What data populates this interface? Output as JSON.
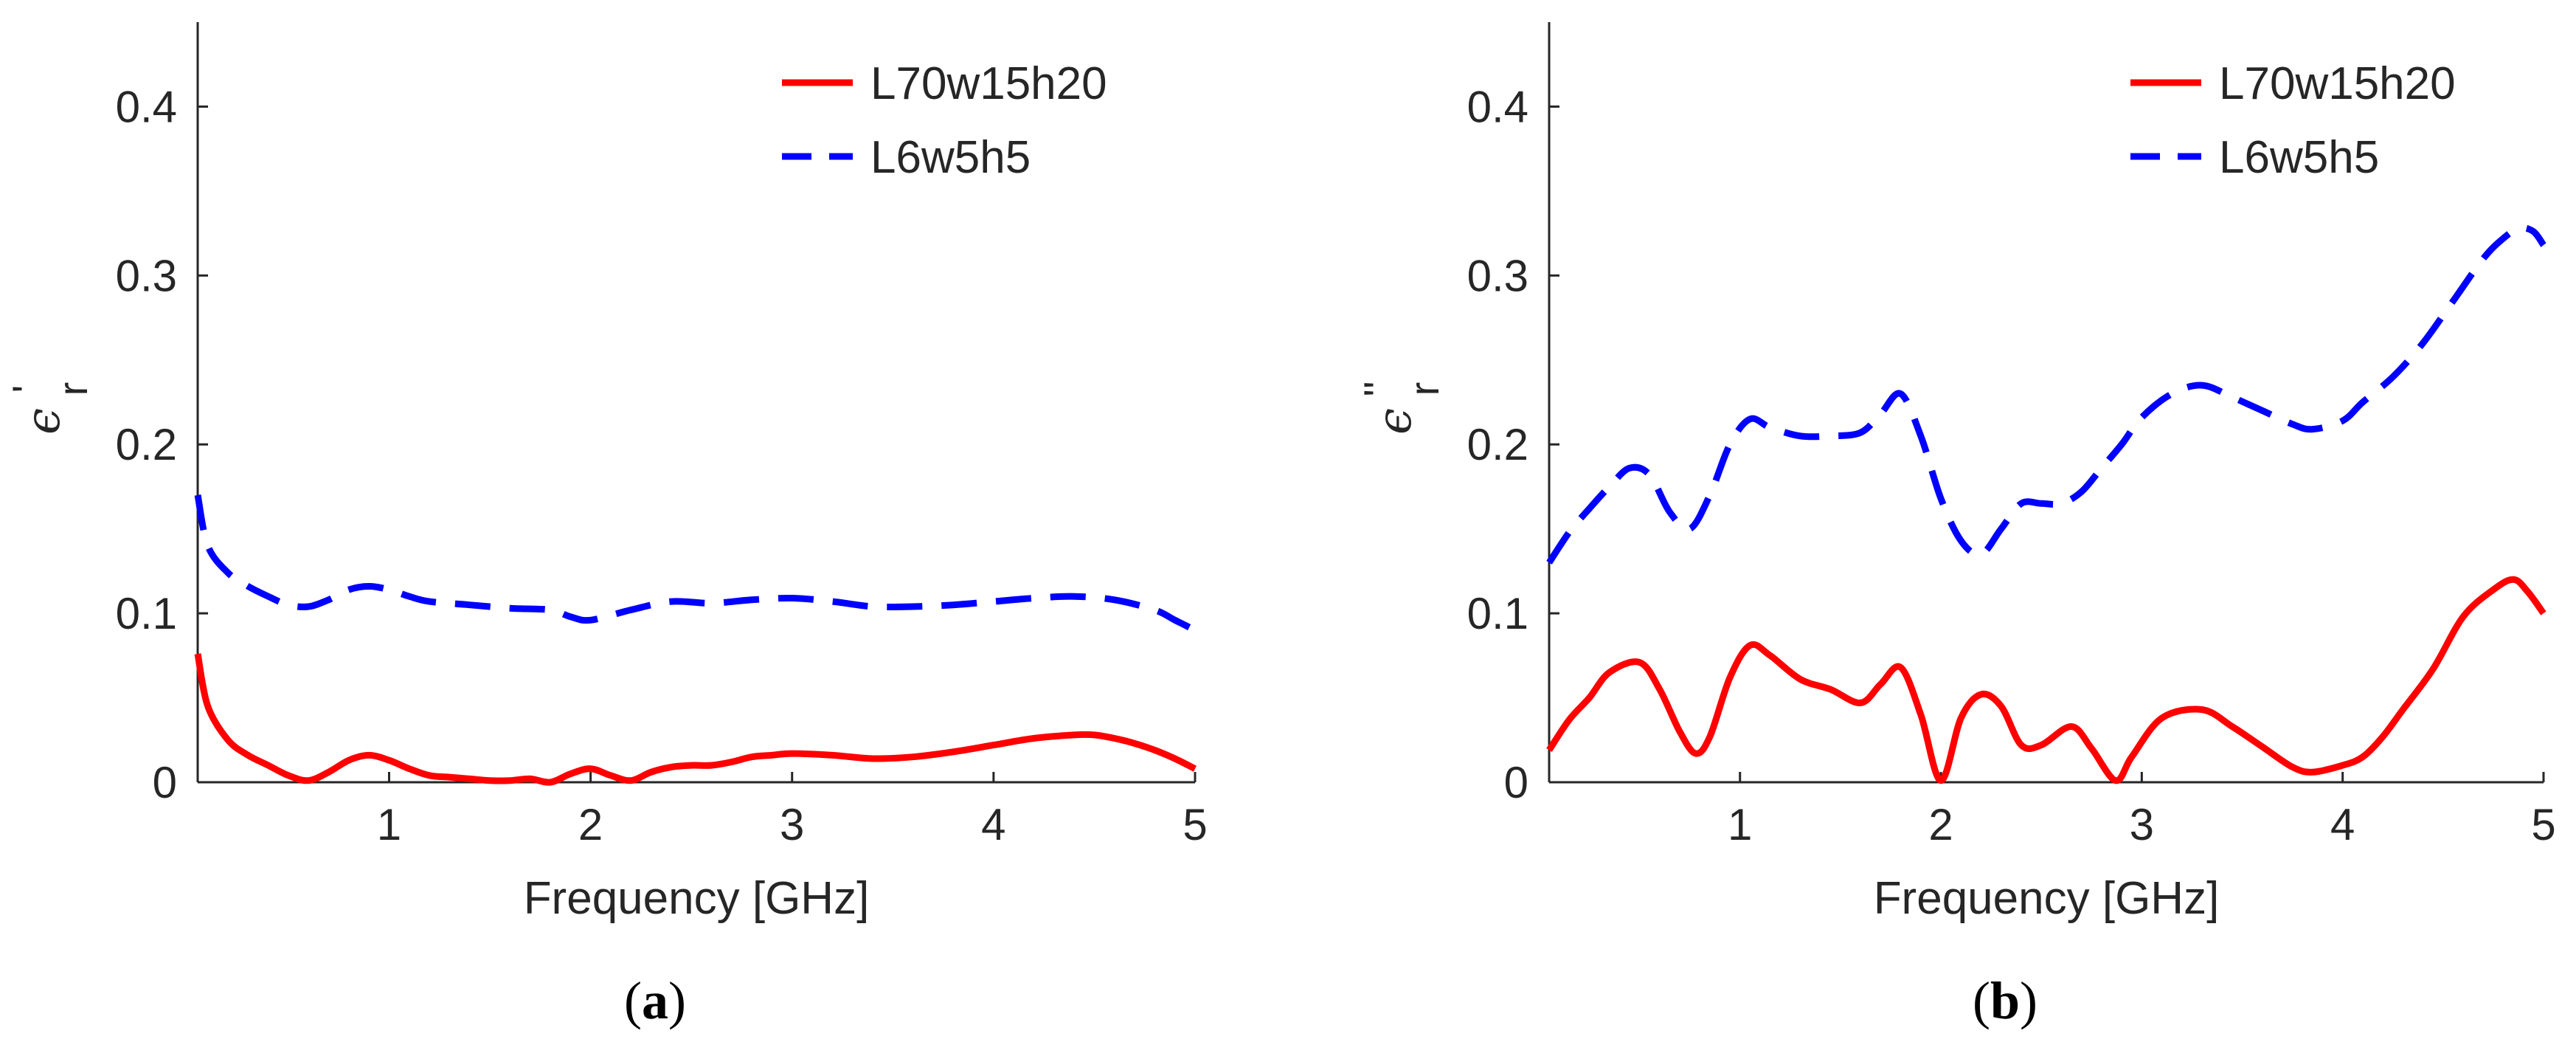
{
  "chart_data": [
    {
      "type": "line",
      "panel_id": "a",
      "caption_label": "a",
      "caption_open": "(",
      "caption_close": ")",
      "xlabel": "Frequency [GHz]",
      "ylabel_symbol": "ϵ",
      "ylabel_subscript": "r",
      "ylabel_prime": "'",
      "xlim": [
        0.05,
        5
      ],
      "ylim": [
        0,
        0.45
      ],
      "xticks": [
        1,
        2,
        3,
        4,
        5
      ],
      "yticks": [
        0,
        0.1,
        0.2,
        0.3,
        0.4
      ],
      "xtick_labels": [
        "1",
        "2",
        "3",
        "4",
        "5"
      ],
      "ytick_labels": [
        "0",
        "0.1",
        "0.2",
        "0.3",
        "0.4"
      ],
      "legend_position": "top-right",
      "series": [
        {
          "name": "L70w15h20",
          "color": "#ff0000",
          "style": "solid",
          "x": [
            0.05,
            0.1,
            0.2,
            0.3,
            0.4,
            0.5,
            0.6,
            0.7,
            0.8,
            0.9,
            1.0,
            1.1,
            1.2,
            1.3,
            1.4,
            1.5,
            1.6,
            1.7,
            1.8,
            1.9,
            2.0,
            2.1,
            2.2,
            2.3,
            2.4,
            2.5,
            2.6,
            2.7,
            2.8,
            2.9,
            3.0,
            3.2,
            3.4,
            3.6,
            3.8,
            4.0,
            4.2,
            4.4,
            4.5,
            4.6,
            4.7,
            4.8,
            4.9,
            5.0
          ],
          "y": [
            0.076,
            0.045,
            0.025,
            0.016,
            0.01,
            0.004,
            0.001,
            0.006,
            0.013,
            0.016,
            0.013,
            0.008,
            0.004,
            0.003,
            0.002,
            0.001,
            0.001,
            0.002,
            0.0,
            0.005,
            0.008,
            0.004,
            0.001,
            0.006,
            0.009,
            0.01,
            0.01,
            0.012,
            0.015,
            0.016,
            0.017,
            0.016,
            0.014,
            0.015,
            0.018,
            0.022,
            0.026,
            0.028,
            0.028,
            0.026,
            0.023,
            0.019,
            0.014,
            0.008
          ]
        },
        {
          "name": "L6w5h5",
          "color": "#0000ff",
          "style": "dashed",
          "x": [
            0.05,
            0.1,
            0.2,
            0.3,
            0.4,
            0.5,
            0.6,
            0.7,
            0.8,
            0.9,
            1.0,
            1.1,
            1.2,
            1.4,
            1.6,
            1.8,
            1.9,
            2.0,
            2.2,
            2.4,
            2.6,
            2.8,
            3.0,
            3.2,
            3.4,
            3.6,
            3.8,
            4.0,
            4.2,
            4.4,
            4.6,
            4.8,
            4.9,
            5.0
          ],
          "y": [
            0.17,
            0.14,
            0.124,
            0.116,
            0.11,
            0.105,
            0.104,
            0.108,
            0.114,
            0.116,
            0.114,
            0.11,
            0.107,
            0.105,
            0.103,
            0.102,
            0.098,
            0.096,
            0.102,
            0.107,
            0.106,
            0.108,
            0.109,
            0.107,
            0.104,
            0.104,
            0.105,
            0.107,
            0.109,
            0.11,
            0.108,
            0.102,
            0.096,
            0.09
          ]
        }
      ]
    },
    {
      "type": "line",
      "panel_id": "b",
      "caption_label": "b",
      "caption_open": "(",
      "caption_close": ")",
      "xlabel": "Frequency [GHz]",
      "ylabel_symbol": "ϵ",
      "ylabel_subscript": "r",
      "ylabel_prime": "''",
      "xlim": [
        0.05,
        5
      ],
      "ylim": [
        0,
        0.45
      ],
      "xticks": [
        1,
        2,
        3,
        4,
        5
      ],
      "yticks": [
        0,
        0.1,
        0.2,
        0.3,
        0.4
      ],
      "xtick_labels": [
        "1",
        "2",
        "3",
        "4",
        "5"
      ],
      "ytick_labels": [
        "0",
        "0.1",
        "0.2",
        "0.3",
        "0.4"
      ],
      "legend_position": "top-right",
      "series": [
        {
          "name": "L70w15h20",
          "color": "#ff0000",
          "style": "solid",
          "x": [
            0.05,
            0.15,
            0.25,
            0.35,
            0.5,
            0.6,
            0.7,
            0.78,
            0.85,
            0.95,
            1.05,
            1.15,
            1.3,
            1.45,
            1.6,
            1.7,
            1.8,
            1.9,
            2.0,
            2.1,
            2.2,
            2.3,
            2.4,
            2.5,
            2.65,
            2.75,
            2.87,
            2.95,
            3.1,
            3.3,
            3.45,
            3.6,
            3.75,
            3.85,
            4.0,
            4.1,
            4.2,
            4.3,
            4.45,
            4.6,
            4.75,
            4.85,
            4.92,
            5.0
          ],
          "y": [
            0.019,
            0.037,
            0.05,
            0.065,
            0.071,
            0.055,
            0.03,
            0.017,
            0.027,
            0.062,
            0.081,
            0.075,
            0.061,
            0.055,
            0.047,
            0.058,
            0.068,
            0.04,
            0.001,
            0.038,
            0.052,
            0.045,
            0.022,
            0.022,
            0.033,
            0.02,
            0.001,
            0.015,
            0.038,
            0.043,
            0.033,
            0.021,
            0.009,
            0.006,
            0.01,
            0.015,
            0.027,
            0.043,
            0.067,
            0.098,
            0.114,
            0.12,
            0.113,
            0.1
          ]
        },
        {
          "name": "L6w5h5",
          "color": "#0000ff",
          "style": "dashed",
          "x": [
            0.05,
            0.15,
            0.25,
            0.35,
            0.45,
            0.55,
            0.65,
            0.75,
            0.85,
            0.95,
            1.05,
            1.15,
            1.3,
            1.45,
            1.6,
            1.7,
            1.8,
            1.9,
            2.0,
            2.1,
            2.2,
            2.3,
            2.4,
            2.5,
            2.6,
            2.7,
            2.8,
            2.9,
            3.0,
            3.15,
            3.3,
            3.45,
            3.6,
            3.75,
            3.85,
            4.0,
            4.1,
            4.25,
            4.4,
            4.55,
            4.7,
            4.8,
            4.88,
            4.95,
            5.0
          ],
          "y": [
            0.13,
            0.148,
            0.162,
            0.175,
            0.186,
            0.182,
            0.16,
            0.15,
            0.17,
            0.2,
            0.215,
            0.21,
            0.205,
            0.205,
            0.207,
            0.218,
            0.23,
            0.205,
            0.168,
            0.143,
            0.135,
            0.15,
            0.165,
            0.165,
            0.165,
            0.172,
            0.186,
            0.2,
            0.216,
            0.23,
            0.235,
            0.228,
            0.22,
            0.212,
            0.209,
            0.214,
            0.225,
            0.24,
            0.26,
            0.285,
            0.31,
            0.322,
            0.328,
            0.326,
            0.318
          ]
        }
      ]
    }
  ]
}
